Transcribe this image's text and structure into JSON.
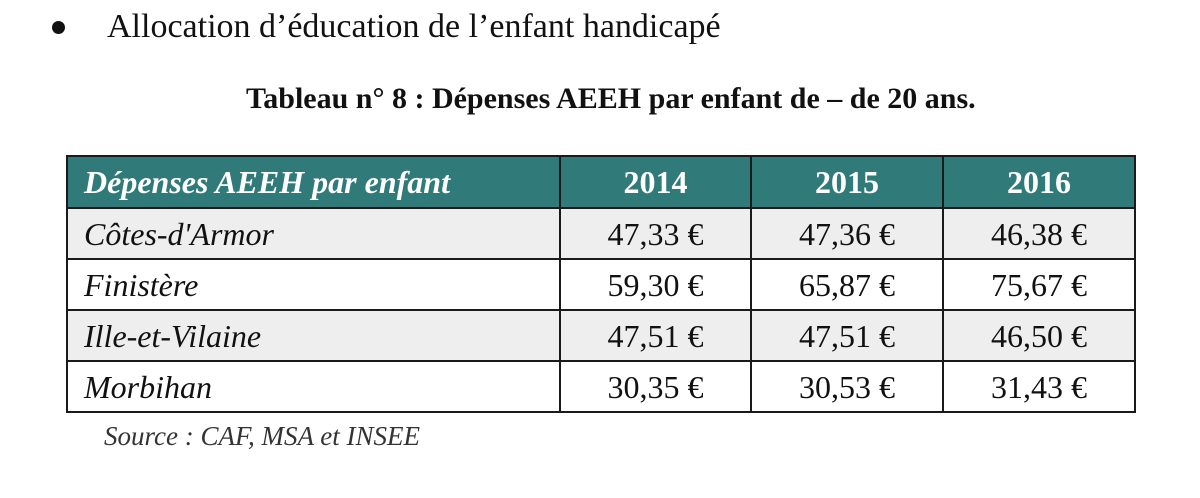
{
  "heading": {
    "bullet": "•",
    "text": "Allocation d’éducation de l’enfant handicapé"
  },
  "table": {
    "title": "Tableau n° 8 : Dépenses AEEH par enfant de – de 20 ans.",
    "header": {
      "label": "Dépenses AEEH par enfant",
      "years": [
        "2014",
        "2015",
        "2016"
      ]
    },
    "rows": [
      {
        "department": "Côtes-d'Armor",
        "values": [
          "47,33 €",
          "47,36 €",
          "46,38 €"
        ]
      },
      {
        "department": "Finistère",
        "values": [
          "59,30 €",
          "65,87 €",
          "75,67 €"
        ]
      },
      {
        "department": "Ille-et-Vilaine",
        "values": [
          "47,51 €",
          "47,51 €",
          "46,50 €"
        ]
      },
      {
        "department": "Morbihan",
        "values": [
          "30,35 €",
          "30,53 €",
          "31,43 €"
        ]
      }
    ],
    "source": "Source : CAF, MSA et INSEE"
  },
  "colors": {
    "header_background": "#317a7a",
    "header_text": "#ffffff",
    "shaded_row": "#eeeeee"
  }
}
